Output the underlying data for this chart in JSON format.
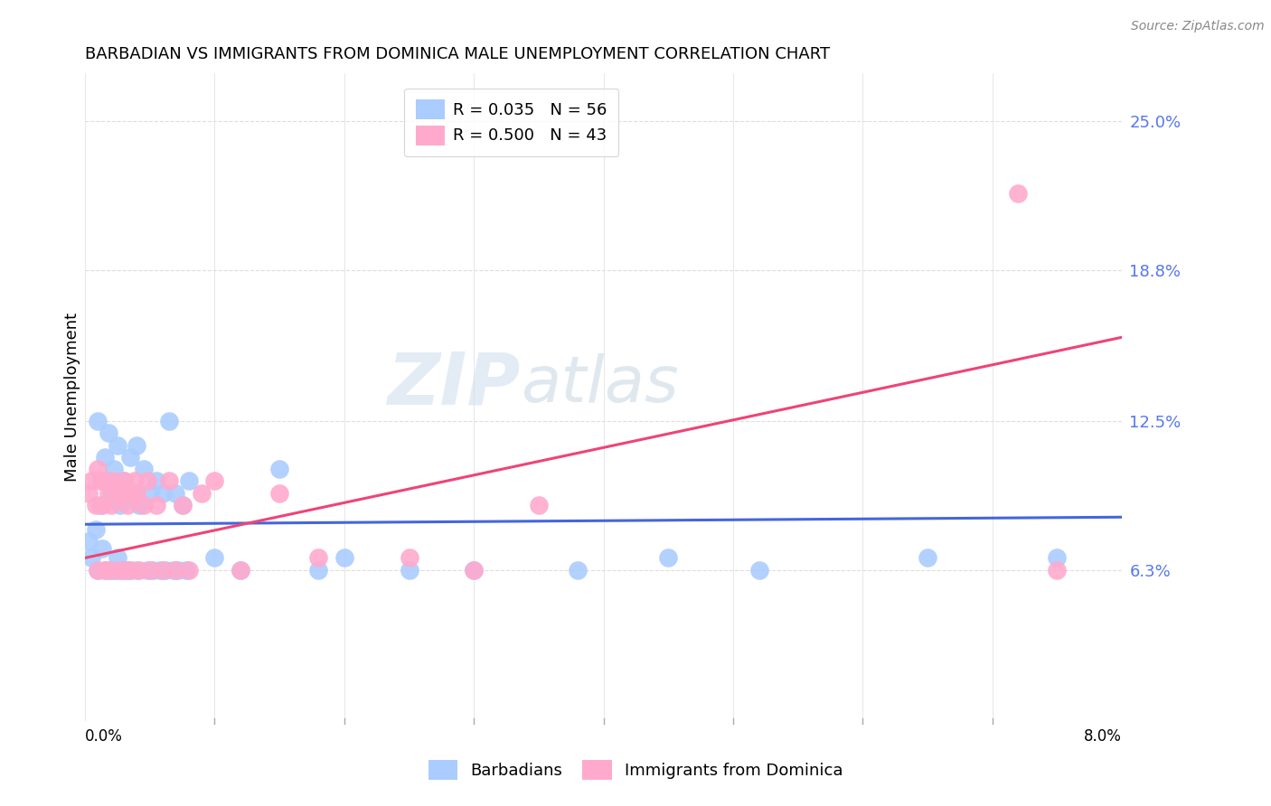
{
  "title": "BARBADIAN VS IMMIGRANTS FROM DOMINICA MALE UNEMPLOYMENT CORRELATION CHART",
  "source": "Source: ZipAtlas.com",
  "ylabel": "Male Unemployment",
  "ytick_labels": [
    "6.3%",
    "12.5%",
    "18.8%",
    "25.0%"
  ],
  "ytick_values": [
    0.063,
    0.125,
    0.188,
    0.25
  ],
  "x_min": 0.0,
  "x_max": 0.08,
  "y_min": 0.0,
  "y_max": 0.27,
  "legend_entry1": "R = 0.035   N = 56",
  "legend_entry2": "R = 0.500   N = 43",
  "legend_color1": "#aaccff",
  "legend_color2": "#ffaacc",
  "barbadians_color": "#aaccff",
  "dominica_color": "#ffaacc",
  "trendline1_color": "#4466dd",
  "trendline2_color": "#ee4477",
  "watermark_text": "ZIP",
  "watermark_text2": "atlas",
  "barb_x": [
    0.0003,
    0.0005,
    0.0008,
    0.001,
    0.001,
    0.0012,
    0.0013,
    0.0015,
    0.0015,
    0.0017,
    0.0018,
    0.002,
    0.002,
    0.0022,
    0.0022,
    0.0025,
    0.0025,
    0.0027,
    0.0028,
    0.003,
    0.003,
    0.0032,
    0.0033,
    0.0035,
    0.0035,
    0.0038,
    0.004,
    0.004,
    0.0042,
    0.0045,
    0.0048,
    0.005,
    0.0052,
    0.0055,
    0.0058,
    0.006,
    0.0062,
    0.0065,
    0.0068,
    0.007,
    0.0072,
    0.0075,
    0.0078,
    0.008,
    0.01,
    0.012,
    0.015,
    0.018,
    0.02,
    0.025,
    0.03,
    0.038,
    0.045,
    0.052,
    0.065,
    0.075
  ],
  "barb_y": [
    0.075,
    0.068,
    0.08,
    0.125,
    0.063,
    0.09,
    0.072,
    0.11,
    0.063,
    0.1,
    0.12,
    0.095,
    0.063,
    0.105,
    0.063,
    0.115,
    0.068,
    0.09,
    0.063,
    0.1,
    0.063,
    0.095,
    0.063,
    0.11,
    0.063,
    0.095,
    0.115,
    0.063,
    0.09,
    0.105,
    0.063,
    0.095,
    0.063,
    0.1,
    0.063,
    0.095,
    0.063,
    0.125,
    0.063,
    0.095,
    0.063,
    0.09,
    0.063,
    0.1,
    0.068,
    0.063,
    0.105,
    0.063,
    0.068,
    0.063,
    0.063,
    0.063,
    0.068,
    0.063,
    0.068,
    0.068
  ],
  "dom_x": [
    0.0003,
    0.0005,
    0.0008,
    0.001,
    0.001,
    0.0012,
    0.0013,
    0.0015,
    0.0015,
    0.0018,
    0.0018,
    0.002,
    0.0022,
    0.0025,
    0.0025,
    0.0028,
    0.003,
    0.003,
    0.0033,
    0.0035,
    0.0035,
    0.0038,
    0.004,
    0.0042,
    0.0045,
    0.0048,
    0.005,
    0.0055,
    0.006,
    0.0065,
    0.007,
    0.0075,
    0.008,
    0.009,
    0.01,
    0.012,
    0.015,
    0.018,
    0.025,
    0.03,
    0.035,
    0.072,
    0.075
  ],
  "dom_y": [
    0.095,
    0.1,
    0.09,
    0.105,
    0.063,
    0.1,
    0.09,
    0.1,
    0.063,
    0.095,
    0.063,
    0.09,
    0.1,
    0.095,
    0.063,
    0.095,
    0.1,
    0.063,
    0.09,
    0.095,
    0.063,
    0.1,
    0.095,
    0.063,
    0.09,
    0.1,
    0.063,
    0.09,
    0.063,
    0.1,
    0.063,
    0.09,
    0.063,
    0.095,
    0.1,
    0.063,
    0.095,
    0.068,
    0.068,
    0.063,
    0.09,
    0.22,
    0.063
  ],
  "trendline_x": [
    0.0,
    0.08
  ],
  "barb_trend_y": [
    0.082,
    0.085
  ],
  "dom_trend_y": [
    0.068,
    0.16
  ]
}
